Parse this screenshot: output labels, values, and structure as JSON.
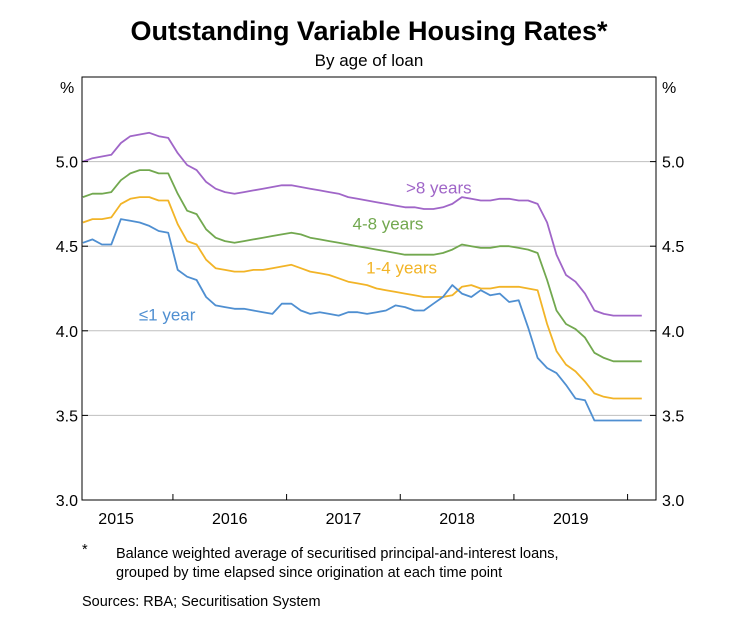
{
  "chart_data": {
    "type": "line",
    "title": "Outstanding Variable Housing Rates*",
    "subtitle": "By age of loan",
    "ylabel_left": "%",
    "ylabel_right": "%",
    "ylim": [
      3.0,
      5.5
    ],
    "yticks": [
      3.0,
      3.5,
      4.0,
      4.5,
      5.0
    ],
    "ytick_labels": [
      "3.0",
      "3.5",
      "4.0",
      "4.5",
      "5.0"
    ],
    "xlim": [
      2014.7,
      2019.75
    ],
    "xtick_labels": [
      "2015",
      "2016",
      "2017",
      "2018",
      "2019"
    ],
    "xtick_label_positions": [
      2015.0,
      2016.0,
      2017.0,
      2018.0,
      2019.0
    ],
    "x_year_boundaries": [
      2015.5,
      2016.5,
      2017.5,
      2018.5,
      2019.5
    ],
    "grid": true,
    "legend": "inline labels",
    "x": [
      2014.708,
      2014.792,
      2014.875,
      2014.958,
      2015.042,
      2015.125,
      2015.208,
      2015.292,
      2015.375,
      2015.458,
      2015.542,
      2015.625,
      2015.708,
      2015.792,
      2015.875,
      2015.958,
      2016.042,
      2016.125,
      2016.208,
      2016.292,
      2016.375,
      2016.458,
      2016.542,
      2016.625,
      2016.708,
      2016.792,
      2016.875,
      2016.958,
      2017.042,
      2017.125,
      2017.208,
      2017.292,
      2017.375,
      2017.458,
      2017.542,
      2017.625,
      2017.708,
      2017.792,
      2017.875,
      2017.958,
      2018.042,
      2018.125,
      2018.208,
      2018.292,
      2018.375,
      2018.458,
      2018.542,
      2018.625,
      2018.708,
      2018.792,
      2018.875,
      2018.958,
      2019.042,
      2019.125,
      2019.208,
      2019.292,
      2019.375,
      2019.458,
      2019.542,
      2019.625
    ],
    "series": [
      {
        "name": ">8 years",
        "color": "#a066c8",
        "values": [
          5.0,
          5.02,
          5.03,
          5.04,
          5.11,
          5.15,
          5.16,
          5.17,
          5.15,
          5.14,
          5.05,
          4.98,
          4.95,
          4.88,
          4.84,
          4.82,
          4.81,
          4.82,
          4.83,
          4.84,
          4.85,
          4.86,
          4.86,
          4.85,
          4.84,
          4.83,
          4.82,
          4.81,
          4.79,
          4.78,
          4.77,
          4.76,
          4.75,
          4.74,
          4.73,
          4.73,
          4.72,
          4.72,
          4.73,
          4.75,
          4.79,
          4.78,
          4.77,
          4.77,
          4.78,
          4.78,
          4.77,
          4.77,
          4.75,
          4.64,
          4.45,
          4.33,
          4.29,
          4.22,
          4.12,
          4.1,
          4.09,
          4.09,
          4.09,
          4.09
        ],
        "label_pos": [
          2017.55,
          4.81
        ]
      },
      {
        "name": "4-8 years",
        "color": "#72a84f",
        "values": [
          4.79,
          4.81,
          4.81,
          4.82,
          4.89,
          4.93,
          4.95,
          4.95,
          4.93,
          4.93,
          4.81,
          4.71,
          4.69,
          4.6,
          4.55,
          4.53,
          4.52,
          4.53,
          4.54,
          4.55,
          4.56,
          4.57,
          4.58,
          4.57,
          4.55,
          4.54,
          4.53,
          4.52,
          4.51,
          4.5,
          4.49,
          4.48,
          4.47,
          4.46,
          4.45,
          4.45,
          4.45,
          4.45,
          4.46,
          4.48,
          4.51,
          4.5,
          4.49,
          4.49,
          4.5,
          4.5,
          4.49,
          4.48,
          4.46,
          4.3,
          4.12,
          4.04,
          4.01,
          3.96,
          3.87,
          3.84,
          3.82,
          3.82,
          3.82,
          3.82
        ],
        "label_pos": [
          2017.08,
          4.6
        ]
      },
      {
        "name": "1-4 years",
        "color": "#f2b427",
        "values": [
          4.64,
          4.66,
          4.66,
          4.67,
          4.75,
          4.78,
          4.79,
          4.79,
          4.77,
          4.77,
          4.63,
          4.53,
          4.51,
          4.42,
          4.37,
          4.36,
          4.35,
          4.35,
          4.36,
          4.36,
          4.37,
          4.38,
          4.39,
          4.37,
          4.35,
          4.34,
          4.33,
          4.31,
          4.29,
          4.28,
          4.27,
          4.25,
          4.24,
          4.23,
          4.22,
          4.21,
          4.2,
          4.2,
          4.2,
          4.21,
          4.26,
          4.27,
          4.25,
          4.25,
          4.26,
          4.26,
          4.26,
          4.25,
          4.24,
          4.04,
          3.88,
          3.8,
          3.76,
          3.7,
          3.63,
          3.61,
          3.6,
          3.6,
          3.6,
          3.6
        ],
        "label_pos": [
          2017.2,
          4.34
        ]
      },
      {
        "name": "≤1 year",
        "color": "#4f8fd1",
        "values": [
          4.52,
          4.54,
          4.51,
          4.51,
          4.66,
          4.65,
          4.64,
          4.62,
          4.59,
          4.58,
          4.36,
          4.32,
          4.3,
          4.2,
          4.15,
          4.14,
          4.13,
          4.13,
          4.12,
          4.11,
          4.1,
          4.16,
          4.16,
          4.12,
          4.1,
          4.11,
          4.1,
          4.09,
          4.11,
          4.11,
          4.1,
          4.11,
          4.12,
          4.15,
          4.14,
          4.12,
          4.12,
          4.16,
          4.2,
          4.27,
          4.22,
          4.2,
          4.24,
          4.21,
          4.22,
          4.17,
          4.18,
          4.02,
          3.84,
          3.78,
          3.75,
          3.68,
          3.6,
          3.59,
          3.47,
          3.47,
          3.47,
          3.47,
          3.47,
          3.47
        ],
        "label_pos": [
          2015.2,
          4.06
        ]
      }
    ]
  },
  "notes": {
    "footnote_mark": "*",
    "footnote_line1": "Balance weighted average of securitised principal-and-interest loans,",
    "footnote_line2": "grouped by time elapsed since origination at each time point",
    "sources": "Sources: RBA; Securitisation System"
  }
}
